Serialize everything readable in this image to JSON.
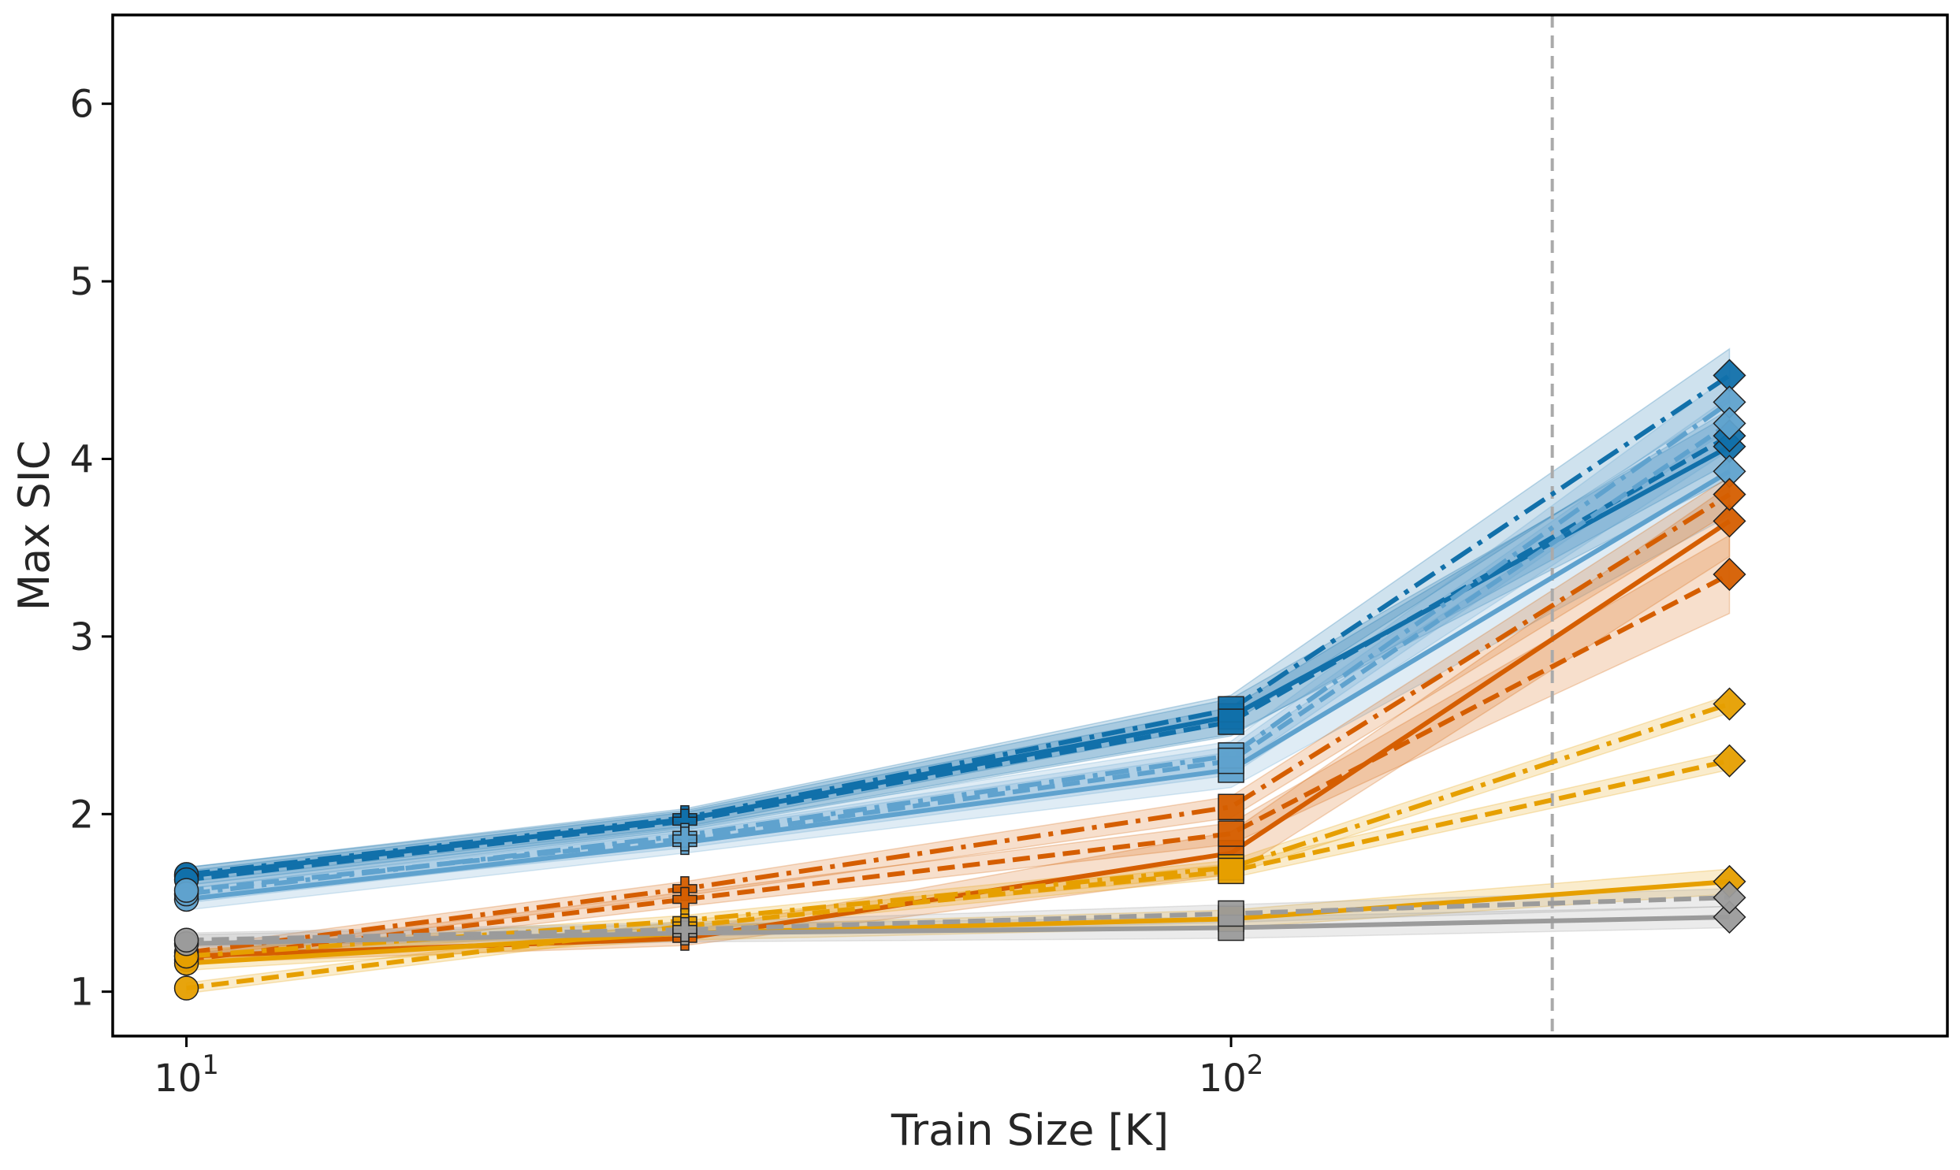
{
  "chart_data": {
    "type": "line",
    "title": "",
    "xlabel": "Train Size [K]",
    "ylabel": "Max SIC",
    "xscale": "log",
    "xlim": [
      8.5,
      485
    ],
    "ylim": [
      0.75,
      6.5
    ],
    "xticks": [
      {
        "value": 10,
        "base": "10",
        "exp": "1"
      },
      {
        "value": 100,
        "base": "10",
        "exp": "2"
      }
    ],
    "yticks": [
      1,
      2,
      3,
      4,
      5,
      6
    ],
    "grid": false,
    "legend": "none",
    "reference_line": {
      "x": 203,
      "style": "dashed",
      "color": "#aaaaaa"
    },
    "x": [
      10,
      30,
      100,
      300
    ],
    "markers": [
      "circle",
      "plus",
      "square",
      "diamond"
    ],
    "series": [
      {
        "color": "#1170aa",
        "dash": "solid",
        "values": [
          1.65,
          1.97,
          2.55,
          4.07
        ],
        "band": [
          0.05,
          0.05,
          0.1,
          0.18
        ]
      },
      {
        "color": "#1170aa",
        "dash": "dashdot",
        "values": [
          1.66,
          1.98,
          2.59,
          4.47
        ],
        "band": [
          0.04,
          0.05,
          0.08,
          0.15
        ]
      },
      {
        "color": "#1170aa",
        "dash": "dashed",
        "values": [
          1.63,
          1.96,
          2.52,
          4.13
        ],
        "band": [
          0.05,
          0.05,
          0.08,
          0.15
        ]
      },
      {
        "color": "#5fa2ce",
        "dash": "solid",
        "values": [
          1.52,
          1.84,
          2.25,
          3.93
        ],
        "band": [
          0.06,
          0.06,
          0.1,
          0.25
        ]
      },
      {
        "color": "#5fa2ce",
        "dash": "dashdot",
        "values": [
          1.55,
          1.88,
          2.33,
          4.32
        ],
        "band": [
          0.05,
          0.05,
          0.08,
          0.15
        ]
      },
      {
        "color": "#5fa2ce",
        "dash": "dashed",
        "values": [
          1.57,
          1.86,
          2.3,
          4.2
        ],
        "band": [
          0.05,
          0.05,
          0.08,
          0.15
        ]
      },
      {
        "color": "#d55e00",
        "dash": "solid",
        "values": [
          1.2,
          1.3,
          1.78,
          3.65
        ],
        "band": [
          0.04,
          0.04,
          0.12,
          0.2
        ]
      },
      {
        "color": "#d55e00",
        "dash": "dashdot",
        "values": [
          1.22,
          1.58,
          2.04,
          3.8
        ],
        "band": [
          0.03,
          0.04,
          0.06,
          0.1
        ]
      },
      {
        "color": "#d55e00",
        "dash": "dashed",
        "values": [
          1.18,
          1.52,
          1.89,
          3.35
        ],
        "band": [
          0.03,
          0.04,
          0.06,
          0.22
        ]
      },
      {
        "color": "#e69f00",
        "dash": "solid",
        "values": [
          1.16,
          1.33,
          1.41,
          1.62
        ],
        "band": [
          0.04,
          0.04,
          0.05,
          0.07
        ]
      },
      {
        "color": "#e69f00",
        "dash": "dashdot",
        "values": [
          1.2,
          1.4,
          1.7,
          2.62
        ],
        "band": [
          0.03,
          0.03,
          0.04,
          0.05
        ]
      },
      {
        "color": "#e69f00",
        "dash": "dashed",
        "values": [
          1.02,
          1.37,
          1.68,
          2.3
        ],
        "band": [
          0.03,
          0.03,
          0.04,
          0.05
        ]
      },
      {
        "color": "#9b9b9b",
        "dash": "solid",
        "values": [
          1.27,
          1.33,
          1.36,
          1.42
        ],
        "band": [
          0.05,
          0.05,
          0.06,
          0.06
        ]
      },
      {
        "color": "#9b9b9b",
        "dash": "dashed",
        "values": [
          1.29,
          1.35,
          1.44,
          1.53
        ],
        "band": [
          0.04,
          0.04,
          0.05,
          0.05
        ]
      }
    ]
  }
}
